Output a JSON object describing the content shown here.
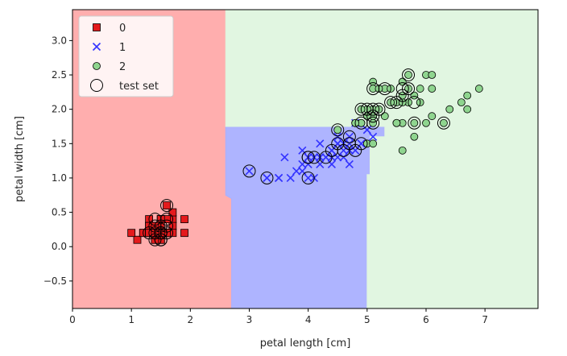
{
  "chart_data": {
    "type": "scatter",
    "title": "",
    "xlabel": "petal length [cm]",
    "ylabel": "petal width [cm]",
    "xlim": [
      0,
      7.9
    ],
    "ylim": [
      -0.9,
      3.45
    ],
    "x_ticks": [
      0,
      1,
      2,
      3,
      4,
      5,
      6,
      7
    ],
    "y_ticks": [
      -0.5,
      0.0,
      0.5,
      1.0,
      1.5,
      2.0,
      2.5,
      3.0
    ],
    "grid": false,
    "legend": {
      "placement": "top-left",
      "entries": [
        {
          "label": "0",
          "marker": "square",
          "color": "#e41a1c"
        },
        {
          "label": "1",
          "marker": "x",
          "color": "#3333ff"
        },
        {
          "label": "2",
          "marker": "circle",
          "color": "#8fd58f"
        },
        {
          "label": "test set",
          "marker": "hollow-circle",
          "color": "#000000"
        }
      ]
    },
    "decision_regions": [
      {
        "class": "0",
        "color": "#ffaaaa",
        "polygon": [
          [
            0,
            -0.9
          ],
          [
            2.7,
            -0.9
          ],
          [
            2.7,
            0.7
          ],
          [
            2.6,
            0.75
          ],
          [
            2.6,
            3.45
          ],
          [
            0,
            3.45
          ]
        ]
      },
      {
        "class": "1",
        "color": "#aab0ff",
        "polygon": [
          [
            2.7,
            -0.9
          ],
          [
            5.0,
            -0.9
          ],
          [
            5.0,
            1.05
          ],
          [
            5.05,
            1.05
          ],
          [
            5.05,
            1.6
          ],
          [
            5.3,
            1.6
          ],
          [
            5.3,
            1.75
          ],
          [
            2.6,
            1.75
          ],
          [
            2.6,
            0.75
          ],
          [
            2.7,
            0.7
          ]
        ]
      },
      {
        "class": "2",
        "color": "#dff5df",
        "polygon": [
          [
            5.0,
            -0.9
          ],
          [
            7.9,
            -0.9
          ],
          [
            7.9,
            3.45
          ],
          [
            2.6,
            3.45
          ],
          [
            2.6,
            1.75
          ],
          [
            5.3,
            1.75
          ],
          [
            5.3,
            1.6
          ],
          [
            5.05,
            1.6
          ],
          [
            5.05,
            1.05
          ],
          [
            5.0,
            1.05
          ]
        ]
      }
    ],
    "series": [
      {
        "name": "0",
        "marker": "square",
        "color": "#e41a1c",
        "points": [
          [
            1.4,
            0.2
          ],
          [
            1.4,
            0.2
          ],
          [
            1.3,
            0.2
          ],
          [
            1.5,
            0.2
          ],
          [
            1.4,
            0.2
          ],
          [
            1.7,
            0.4
          ],
          [
            1.4,
            0.3
          ],
          [
            1.5,
            0.2
          ],
          [
            1.4,
            0.2
          ],
          [
            1.5,
            0.1
          ],
          [
            1.5,
            0.2
          ],
          [
            1.6,
            0.2
          ],
          [
            1.4,
            0.1
          ],
          [
            1.1,
            0.1
          ],
          [
            1.2,
            0.2
          ],
          [
            1.5,
            0.4
          ],
          [
            1.3,
            0.4
          ],
          [
            1.4,
            0.3
          ],
          [
            1.7,
            0.3
          ],
          [
            1.5,
            0.3
          ],
          [
            1.7,
            0.2
          ],
          [
            1.5,
            0.4
          ],
          [
            1.0,
            0.2
          ],
          [
            1.7,
            0.5
          ],
          [
            1.9,
            0.2
          ],
          [
            1.6,
            0.2
          ],
          [
            1.6,
            0.4
          ],
          [
            1.5,
            0.2
          ],
          [
            1.4,
            0.2
          ],
          [
            1.6,
            0.2
          ],
          [
            1.6,
            0.2
          ],
          [
            1.5,
            0.4
          ],
          [
            1.5,
            0.1
          ],
          [
            1.4,
            0.2
          ],
          [
            1.5,
            0.2
          ],
          [
            1.2,
            0.2
          ],
          [
            1.3,
            0.2
          ],
          [
            1.4,
            0.1
          ],
          [
            1.3,
            0.2
          ],
          [
            1.5,
            0.2
          ],
          [
            1.3,
            0.3
          ],
          [
            1.3,
            0.3
          ],
          [
            1.3,
            0.2
          ],
          [
            1.6,
            0.6
          ],
          [
            1.9,
            0.4
          ],
          [
            1.4,
            0.3
          ],
          [
            1.6,
            0.2
          ],
          [
            1.4,
            0.2
          ],
          [
            1.5,
            0.2
          ],
          [
            1.4,
            0.2
          ]
        ]
      },
      {
        "name": "1",
        "marker": "x",
        "color": "#3333ff",
        "points": [
          [
            4.7,
            1.4
          ],
          [
            4.5,
            1.5
          ],
          [
            4.9,
            1.5
          ],
          [
            4.0,
            1.3
          ],
          [
            4.6,
            1.5
          ],
          [
            4.5,
            1.3
          ],
          [
            4.7,
            1.6
          ],
          [
            3.3,
            1.0
          ],
          [
            4.6,
            1.3
          ],
          [
            3.9,
            1.4
          ],
          [
            3.5,
            1.0
          ],
          [
            4.2,
            1.5
          ],
          [
            4.0,
            1.0
          ],
          [
            4.7,
            1.4
          ],
          [
            3.6,
            1.3
          ],
          [
            4.4,
            1.4
          ],
          [
            4.5,
            1.5
          ],
          [
            4.1,
            1.0
          ],
          [
            4.5,
            1.5
          ],
          [
            3.9,
            1.1
          ],
          [
            4.8,
            1.8
          ],
          [
            4.0,
            1.3
          ],
          [
            4.9,
            1.5
          ],
          [
            4.7,
            1.2
          ],
          [
            4.3,
            1.3
          ],
          [
            4.4,
            1.4
          ],
          [
            4.8,
            1.4
          ],
          [
            5.0,
            1.7
          ],
          [
            4.5,
            1.5
          ],
          [
            3.5,
            1.0
          ],
          [
            3.8,
            1.1
          ],
          [
            3.7,
            1.0
          ],
          [
            3.9,
            1.2
          ],
          [
            5.1,
            1.6
          ],
          [
            4.5,
            1.5
          ],
          [
            4.5,
            1.6
          ],
          [
            4.7,
            1.5
          ],
          [
            4.4,
            1.3
          ],
          [
            4.1,
            1.3
          ],
          [
            4.0,
            1.3
          ],
          [
            4.4,
            1.2
          ],
          [
            4.6,
            1.4
          ],
          [
            4.0,
            1.2
          ],
          [
            3.3,
            1.0
          ],
          [
            4.2,
            1.3
          ],
          [
            4.2,
            1.2
          ],
          [
            4.2,
            1.3
          ],
          [
            4.3,
            1.3
          ],
          [
            3.0,
            1.1
          ],
          [
            4.1,
            1.3
          ]
        ]
      },
      {
        "name": "2",
        "marker": "circle",
        "color": "#8fd58f",
        "points": [
          [
            6.0,
            2.5
          ],
          [
            5.1,
            1.9
          ],
          [
            5.9,
            2.1
          ],
          [
            5.6,
            1.8
          ],
          [
            5.8,
            2.2
          ],
          [
            6.6,
            2.1
          ],
          [
            4.5,
            1.7
          ],
          [
            6.3,
            1.8
          ],
          [
            5.8,
            1.8
          ],
          [
            6.1,
            2.5
          ],
          [
            5.1,
            2.0
          ],
          [
            5.3,
            1.9
          ],
          [
            5.5,
            2.1
          ],
          [
            5.0,
            2.0
          ],
          [
            5.1,
            2.4
          ],
          [
            5.3,
            2.3
          ],
          [
            5.5,
            1.8
          ],
          [
            6.7,
            2.2
          ],
          [
            6.9,
            2.3
          ],
          [
            5.0,
            1.5
          ],
          [
            5.7,
            2.3
          ],
          [
            4.9,
            2.0
          ],
          [
            6.7,
            2.0
          ],
          [
            4.9,
            1.8
          ],
          [
            5.7,
            2.1
          ],
          [
            6.0,
            1.8
          ],
          [
            4.8,
            1.8
          ],
          [
            4.9,
            1.8
          ],
          [
            5.6,
            2.1
          ],
          [
            5.8,
            1.6
          ],
          [
            6.1,
            1.9
          ],
          [
            6.4,
            2.0
          ],
          [
            5.6,
            2.2
          ],
          [
            5.1,
            1.5
          ],
          [
            5.6,
            1.4
          ],
          [
            6.1,
            2.3
          ],
          [
            5.6,
            2.4
          ],
          [
            5.5,
            1.8
          ],
          [
            4.8,
            1.8
          ],
          [
            5.4,
            2.1
          ],
          [
            5.6,
            2.4
          ],
          [
            5.1,
            2.3
          ],
          [
            5.1,
            1.9
          ],
          [
            5.9,
            2.3
          ],
          [
            5.7,
            2.5
          ],
          [
            5.2,
            2.3
          ],
          [
            5.0,
            1.9
          ],
          [
            5.2,
            2.0
          ],
          [
            5.4,
            2.3
          ],
          [
            5.1,
            1.8
          ]
        ]
      },
      {
        "name": "test set",
        "marker": "hollow-circle",
        "color": "#000000",
        "points": [
          [
            1.4,
            0.4
          ],
          [
            1.5,
            0.1
          ],
          [
            1.5,
            0.2
          ],
          [
            1.4,
            0.2
          ],
          [
            1.6,
            0.6
          ],
          [
            1.5,
            0.3
          ],
          [
            1.3,
            0.2
          ],
          [
            1.6,
            0.2
          ],
          [
            1.4,
            0.1
          ],
          [
            1.5,
            0.2
          ],
          [
            1.5,
            0.1
          ],
          [
            1.6,
            0.4
          ],
          [
            1.4,
            0.3
          ],
          [
            1.5,
            0.2
          ],
          [
            1.6,
            0.3
          ],
          [
            3.0,
            1.1
          ],
          [
            3.3,
            1.0
          ],
          [
            4.0,
            1.0
          ],
          [
            4.0,
            1.3
          ],
          [
            4.3,
            1.3
          ],
          [
            4.4,
            1.4
          ],
          [
            4.5,
            1.5
          ],
          [
            4.6,
            1.4
          ],
          [
            4.7,
            1.5
          ],
          [
            4.8,
            1.4
          ],
          [
            4.9,
            1.5
          ],
          [
            4.5,
            1.7
          ],
          [
            4.0,
            1.3
          ],
          [
            4.1,
            1.3
          ],
          [
            4.7,
            1.6
          ],
          [
            4.9,
            1.8
          ],
          [
            4.9,
            2.0
          ],
          [
            5.0,
            2.0
          ],
          [
            5.1,
            2.0
          ],
          [
            5.1,
            1.9
          ],
          [
            5.1,
            1.8
          ],
          [
            5.1,
            2.3
          ],
          [
            5.3,
            2.3
          ],
          [
            5.4,
            2.1
          ],
          [
            5.5,
            2.1
          ],
          [
            5.6,
            2.3
          ],
          [
            5.7,
            2.3
          ],
          [
            5.7,
            2.5
          ],
          [
            5.8,
            1.8
          ],
          [
            5.8,
            2.1
          ],
          [
            6.3,
            1.8
          ],
          [
            5.6,
            2.2
          ],
          [
            5.2,
            2.0
          ]
        ]
      }
    ]
  }
}
